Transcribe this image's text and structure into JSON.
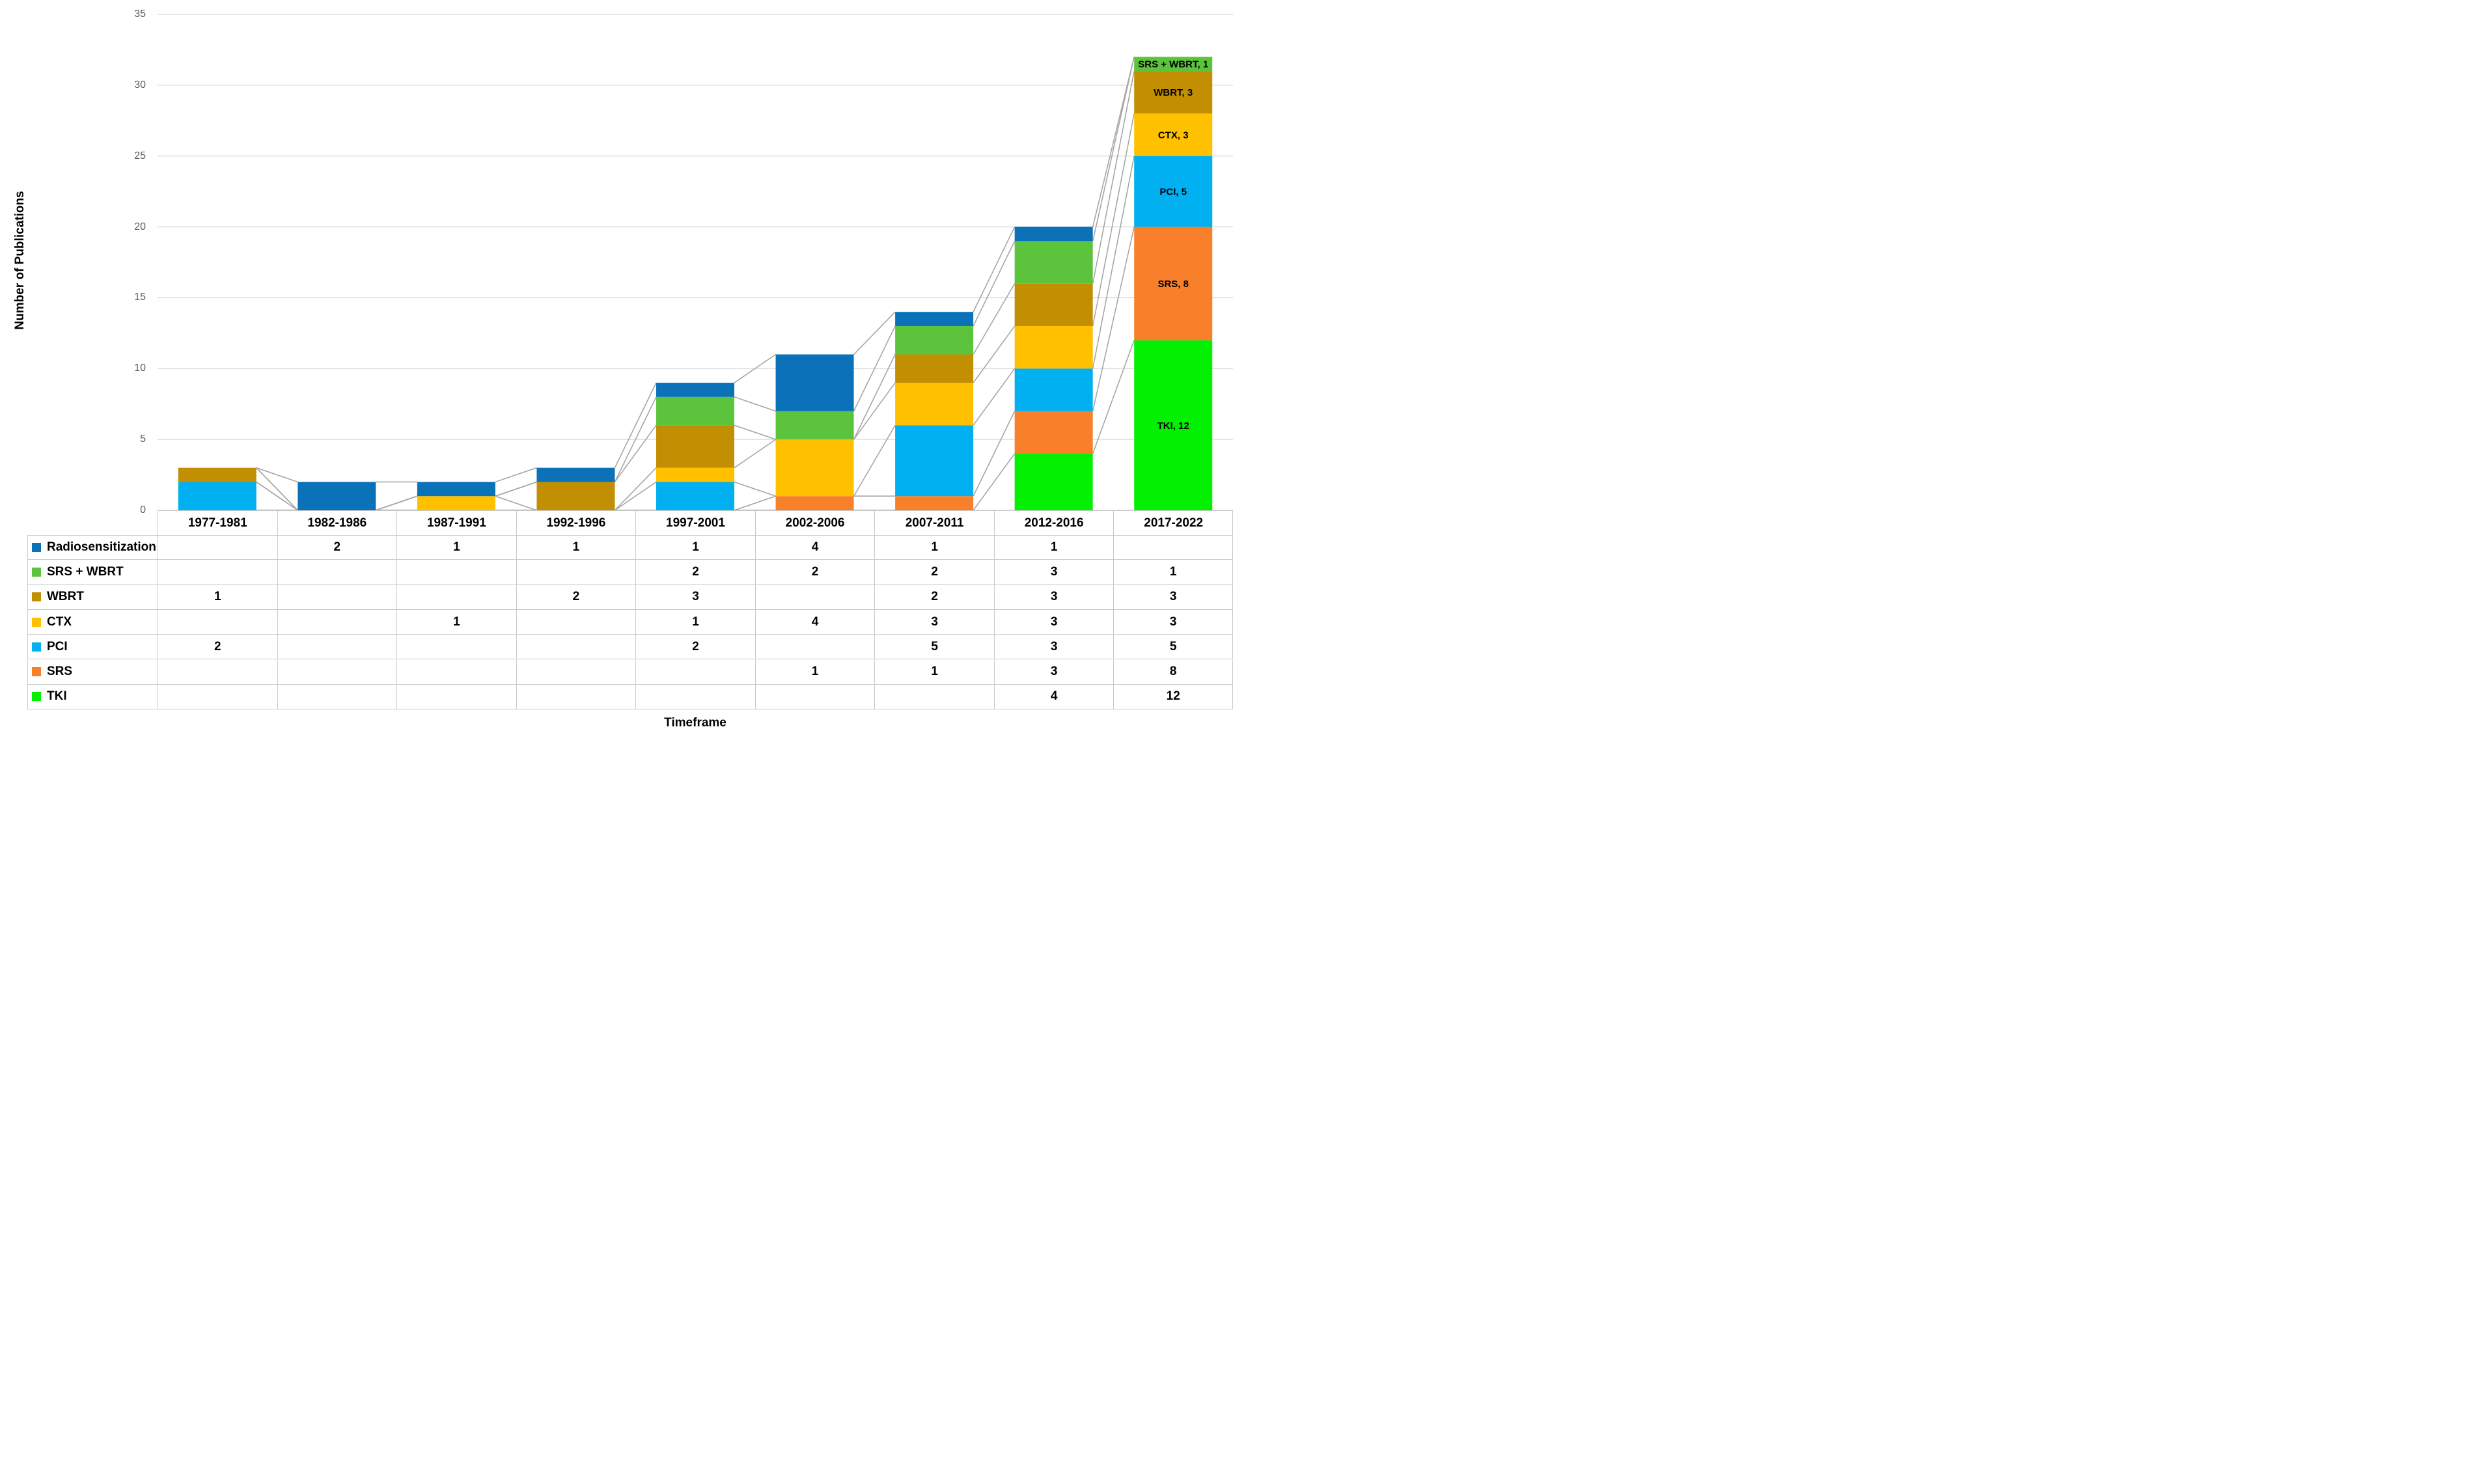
{
  "y_axis": {
    "title": "Number of Publications",
    "tick_values": [
      0,
      5,
      10,
      15,
      20,
      25,
      30,
      35
    ],
    "tick_labels": [
      "0",
      "5",
      "10",
      "15",
      "20",
      "25",
      "30",
      "35"
    ]
  },
  "x_axis": {
    "title": "Timeframe"
  },
  "chart_data": {
    "type": "bar",
    "stacked": true,
    "gridlines": true,
    "series_lines": true,
    "legend_position": "table-left",
    "ylim": [
      0,
      35
    ],
    "categories": [
      "1977-1981",
      "1982-1986",
      "1987-1991",
      "1992-1996",
      "1997-2001",
      "2002-2006",
      "2007-2011",
      "2012-2016",
      "2017-2022"
    ],
    "series": [
      {
        "name": "Radiosensitization",
        "color": "#0B72B9",
        "values": [
          null,
          2,
          1,
          1,
          1,
          4,
          1,
          1,
          null
        ]
      },
      {
        "name": "SRS + WBRT",
        "color": "#5CC43C",
        "values": [
          null,
          null,
          null,
          null,
          2,
          2,
          2,
          3,
          1
        ]
      },
      {
        "name": "WBRT",
        "color": "#C28F03",
        "values": [
          1,
          null,
          null,
          2,
          3,
          null,
          2,
          3,
          3
        ]
      },
      {
        "name": "CTX",
        "color": "#FFC000",
        "values": [
          null,
          null,
          1,
          null,
          1,
          4,
          3,
          3,
          3
        ]
      },
      {
        "name": "PCI",
        "color": "#00B0F0",
        "values": [
          2,
          null,
          null,
          null,
          2,
          null,
          5,
          3,
          5
        ]
      },
      {
        "name": "SRS",
        "color": "#F8802B",
        "values": [
          null,
          null,
          null,
          null,
          null,
          1,
          1,
          3,
          8
        ]
      },
      {
        "name": "TKI",
        "color": "#03F003",
        "values": [
          null,
          null,
          null,
          null,
          null,
          null,
          null,
          4,
          12
        ]
      }
    ],
    "stack_order_bottom_to_top": [
      "TKI",
      "SRS",
      "PCI",
      "CTX",
      "WBRT",
      "SRS + WBRT",
      "Radiosensitization"
    ],
    "data_labels_last_bar": [
      {
        "series": "SRS + WBRT",
        "text": "SRS + WBRT, 1"
      },
      {
        "series": "WBRT",
        "text": "WBRT, 3"
      },
      {
        "series": "CTX",
        "text": "CTX, 3"
      },
      {
        "series": "PCI",
        "text": "PCI, 5"
      },
      {
        "series": "SRS",
        "text": "SRS, 8"
      },
      {
        "series": "TKI",
        "text": "TKI, 12"
      }
    ]
  },
  "style": {
    "gridline_color": "#D9D9D9",
    "series_line_color": "#A6A6A6",
    "table_border_color": "#C9C9C9",
    "tick_label_color": "#595959",
    "text_color": "#000000",
    "background": "#FFFFFF"
  }
}
